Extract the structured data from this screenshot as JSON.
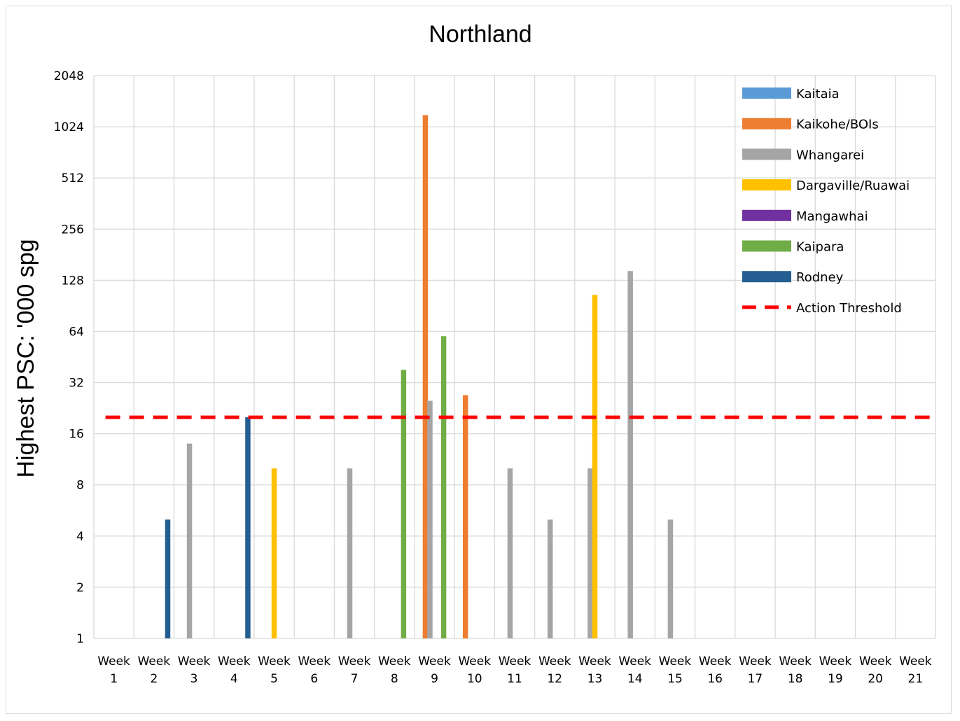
{
  "chart_data": {
    "type": "bar",
    "title": "Northland",
    "xlabel": "",
    "ylabel": "Highest PSC: '000 spg",
    "yscale": "log2",
    "ylim": [
      1,
      2048
    ],
    "yticks": [
      "1",
      "2",
      "4",
      "8",
      "16",
      "32",
      "64",
      "128",
      "256",
      "512",
      "1024",
      "2048"
    ],
    "grid": true,
    "legend_position": "top-right",
    "categories": [
      [
        "Week",
        "1"
      ],
      [
        "Week",
        "2"
      ],
      [
        "Week",
        "3"
      ],
      [
        "Week",
        "4"
      ],
      [
        "Week",
        "5"
      ],
      [
        "Week",
        "6"
      ],
      [
        "Week",
        "7"
      ],
      [
        "Week",
        "8"
      ],
      [
        "Week",
        "9"
      ],
      [
        "Week",
        "10"
      ],
      [
        "Week",
        "11"
      ],
      [
        "Week",
        "12"
      ],
      [
        "Week",
        "13"
      ],
      [
        "Week",
        "14"
      ],
      [
        "Week",
        "15"
      ],
      [
        "Week",
        "16"
      ],
      [
        "Week",
        "17"
      ],
      [
        "Week",
        "18"
      ],
      [
        "Week",
        "19"
      ],
      [
        "Week",
        "20"
      ],
      [
        "Week",
        "21"
      ]
    ],
    "series": [
      {
        "name": "Kaitaia",
        "color": "#5b9bd5",
        "values": [
          null,
          null,
          null,
          null,
          null,
          null,
          null,
          null,
          null,
          null,
          null,
          null,
          null,
          null,
          null,
          null,
          null,
          null,
          null,
          null,
          null
        ]
      },
      {
        "name": "Kaikohe/BOIs",
        "color": "#ed7d31",
        "values": [
          null,
          null,
          null,
          null,
          null,
          null,
          null,
          null,
          1200,
          27,
          null,
          null,
          null,
          null,
          null,
          null,
          null,
          null,
          null,
          null,
          null
        ]
      },
      {
        "name": "Whangarei",
        "color": "#a5a5a5",
        "values": [
          null,
          null,
          14,
          null,
          null,
          null,
          10,
          null,
          25,
          null,
          10,
          5,
          10,
          145,
          5,
          null,
          null,
          null,
          null,
          null,
          null
        ]
      },
      {
        "name": "Dargaville/Ruawai",
        "color": "#ffc000",
        "values": [
          null,
          null,
          null,
          null,
          10,
          null,
          null,
          null,
          null,
          null,
          null,
          null,
          105,
          null,
          null,
          null,
          null,
          null,
          null,
          null,
          null
        ]
      },
      {
        "name": "Mangawhai",
        "color": "#7030a0",
        "values": [
          null,
          null,
          null,
          null,
          null,
          null,
          null,
          null,
          null,
          null,
          null,
          null,
          null,
          null,
          null,
          null,
          null,
          null,
          null,
          null,
          null
        ]
      },
      {
        "name": "Kaipara",
        "color": "#70ad47",
        "values": [
          null,
          null,
          null,
          null,
          null,
          null,
          null,
          38,
          60,
          null,
          null,
          null,
          null,
          null,
          null,
          null,
          null,
          null,
          null,
          null,
          null
        ]
      },
      {
        "name": "Rodney",
        "color": "#255e91",
        "values": [
          null,
          5,
          null,
          20,
          null,
          null,
          null,
          null,
          null,
          null,
          null,
          null,
          null,
          null,
          null,
          null,
          null,
          null,
          null,
          null,
          null
        ]
      }
    ],
    "threshold": {
      "name": "Action Threshold",
      "value": 20,
      "color": "#ff0000"
    }
  }
}
